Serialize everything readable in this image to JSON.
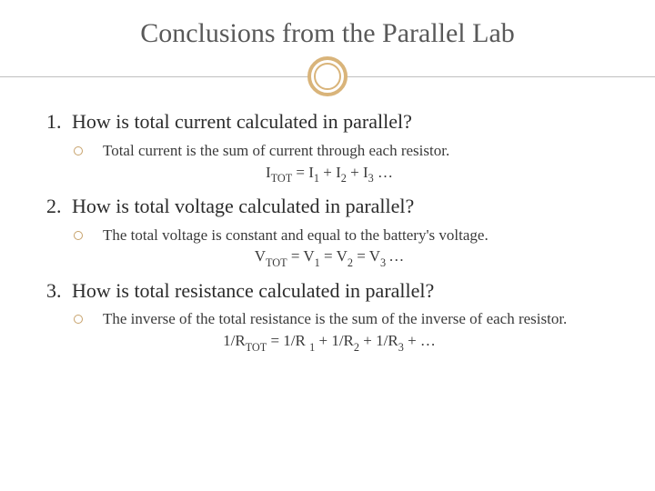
{
  "slide_title": "Conclusions from the Parallel Lab",
  "title_color": "#595959",
  "title_fontsize": 30,
  "accent_color": "#d9b47a",
  "bullet_border_color": "#c7a26b",
  "hr_color": "#bfbfbf",
  "body_color": "#2b2b2b",
  "bullet_text_color": "#3a3a3a",
  "background_color": "#ffffff",
  "question_fontsize": 22,
  "bullet_fontsize": 17,
  "items": [
    {
      "number": "1.",
      "question": "How is total current calculated in parallel?",
      "answer": "Total current is the sum of current through each resistor.",
      "formula_html": "I<span class=\"sub\">TOT</span> = I<span class=\"sub\">1</span> + I<span class=\"sub\">2</span> + I<span class=\"sub\">3</span> …"
    },
    {
      "number": "2.",
      "question": "How is total voltage calculated in parallel?",
      "answer": "The total voltage is constant and equal to the battery's voltage.",
      "formula_html": "V<span class=\"sub\">TOT</span>  = V<span class=\"sub\">1</span> = V<span class=\"sub\">2</span> = V<span class=\"sub\">3 </span>…"
    },
    {
      "number": "3.",
      "question": "How is total resistance calculated in parallel?",
      "answer": "The inverse of the total resistance is the sum of the inverse of each resistor.",
      "formula_html": "1/R<span class=\"sub\">TOT</span> = 1/R <span class=\"sub\">1</span> + 1/R<span class=\"sub\">2</span> + 1/R<span class=\"sub\">3</span> + …"
    }
  ]
}
